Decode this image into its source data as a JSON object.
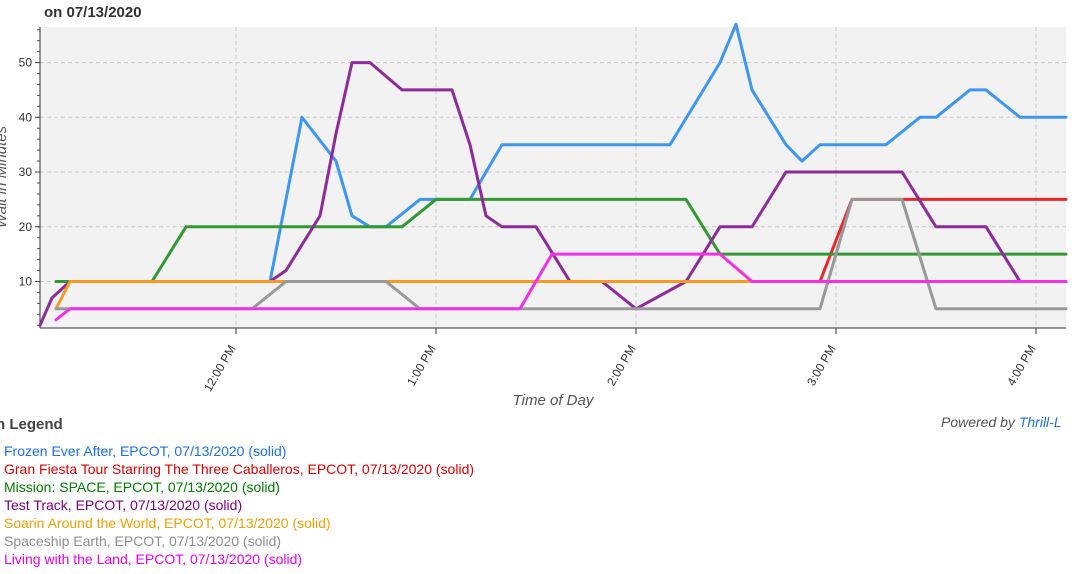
{
  "header": {
    "title": "on 07/13/2020"
  },
  "chart_data": {
    "type": "line",
    "title": "on 07/13/2020",
    "xlabel": "Time of Day",
    "ylabel": "Wait in Minutes",
    "x_unit": "time of day (decimal hours)",
    "xlim": [
      11.02,
      16.15
    ],
    "ylim": [
      1.5,
      56.5
    ],
    "x_ticks": [
      {
        "value": 12,
        "label": "12:00 PM"
      },
      {
        "value": 13,
        "label": "1:00 PM"
      },
      {
        "value": 14,
        "label": "2:00 PM"
      },
      {
        "value": 15,
        "label": "3:00 PM"
      },
      {
        "value": 16,
        "label": "4:00 PM"
      }
    ],
    "y_ticks": [
      10,
      20,
      30,
      40,
      50
    ],
    "grid": true,
    "series": [
      {
        "name": "Frozen Ever After, EPCOT, 07/13/2020 (solid)",
        "color": "#3d96f0",
        "x": [
          12.17,
          12.33,
          12.5,
          12.58,
          12.67,
          12.75,
          12.92,
          13.0,
          13.17,
          13.33,
          14.0,
          14.17,
          14.42,
          14.5,
          14.58,
          14.75,
          14.83,
          14.92,
          15.0,
          15.25,
          15.42,
          15.5,
          15.67,
          15.75,
          15.92,
          16.15
        ],
        "y": [
          10,
          40,
          32,
          22,
          20,
          20,
          25,
          25,
          25,
          35,
          35,
          35,
          50,
          57,
          45,
          35,
          32,
          35,
          35,
          35,
          40,
          40,
          45,
          45,
          40,
          40
        ]
      },
      {
        "name": "Gran Fiesta Tour Starring The Three Caballeros, EPCOT, 07/13/2020 (solid)",
        "color": "#e8282b",
        "x": [
          14.92,
          15.08,
          15.33,
          16.15
        ],
        "y": [
          10,
          25,
          25,
          25
        ]
      },
      {
        "name": "Mission: SPACE, EPCOT, 07/13/2020 (solid)",
        "color": "#339933",
        "x": [
          11.1,
          11.58,
          11.75,
          12.33,
          12.83,
          13.0,
          13.75,
          14.25,
          14.42,
          16.15
        ],
        "y": [
          10,
          10,
          20,
          20,
          20,
          25,
          25,
          25,
          15,
          15
        ]
      },
      {
        "name": "Test Track, EPCOT, 07/13/2020 (solid)",
        "color": "#8e2b9a",
        "x": [
          11.02,
          11.08,
          11.17,
          12.17,
          12.25,
          12.42,
          12.5,
          12.58,
          12.67,
          12.83,
          13.0,
          13.08,
          13.17,
          13.25,
          13.33,
          13.5,
          13.67,
          13.83,
          14.0,
          14.25,
          14.42,
          14.58,
          14.75,
          15.0,
          15.33,
          15.5,
          15.75,
          15.92,
          16.15
        ],
        "y": [
          2,
          7,
          10,
          10,
          12,
          22,
          37,
          50,
          50,
          45,
          45,
          45,
          35,
          22,
          20,
          20,
          10,
          10,
          5,
          10,
          20,
          20,
          30,
          30,
          30,
          20,
          20,
          10,
          10
        ]
      },
      {
        "name": "Soarin Around the World, EPCOT, 07/13/2020 (solid)",
        "color": "#f59a23",
        "x": [
          11.1,
          11.17,
          14.58
        ],
        "y": [
          5,
          10,
          10
        ]
      },
      {
        "name": "Spaceship Earth, EPCOT, 07/13/2020 (solid)",
        "color": "#999999",
        "x": [
          11.1,
          12.08,
          12.25,
          12.75,
          12.92,
          13.0,
          13.42,
          14.92,
          15.08,
          15.33,
          15.5,
          16.15
        ],
        "y": [
          5,
          5,
          10,
          10,
          5,
          5,
          5,
          5,
          25,
          25,
          5,
          5
        ]
      },
      {
        "name": "Living with the Land, EPCOT, 07/13/2020 (solid)",
        "color": "#f032e6",
        "x": [
          11.1,
          11.17,
          12.83,
          12.92,
          13.42,
          13.58,
          14.42,
          14.58,
          16.15
        ],
        "y": [
          3,
          5,
          5,
          5,
          5,
          15,
          15,
          10,
          10
        ]
      }
    ]
  },
  "legend": {
    "title": "n Legend",
    "items": [
      {
        "label": "Frozen Ever After, EPCOT, 07/13/2020 (solid)",
        "color": "#1a73e8"
      },
      {
        "label": "Gran Fiesta Tour Starring The Three Caballeros, EPCOT, 07/13/2020 (solid)",
        "color": "#e00000"
      },
      {
        "label": "Mission: SPACE, EPCOT, 07/13/2020 (solid)",
        "color": "#008000"
      },
      {
        "label": "Test Track, EPCOT, 07/13/2020 (solid)",
        "color": "#800080"
      },
      {
        "label": "Soarin Around the World, EPCOT, 07/13/2020 (solid)",
        "color": "#f0a000"
      },
      {
        "label": "Spaceship Earth, EPCOT, 07/13/2020 (solid)",
        "color": "#909090"
      },
      {
        "label": "Living with the Land, EPCOT, 07/13/2020 (solid)",
        "color": "#ee00ee"
      }
    ]
  },
  "footer": {
    "powered_prefix": "Powered by ",
    "powered_link": "Thrill-L"
  }
}
